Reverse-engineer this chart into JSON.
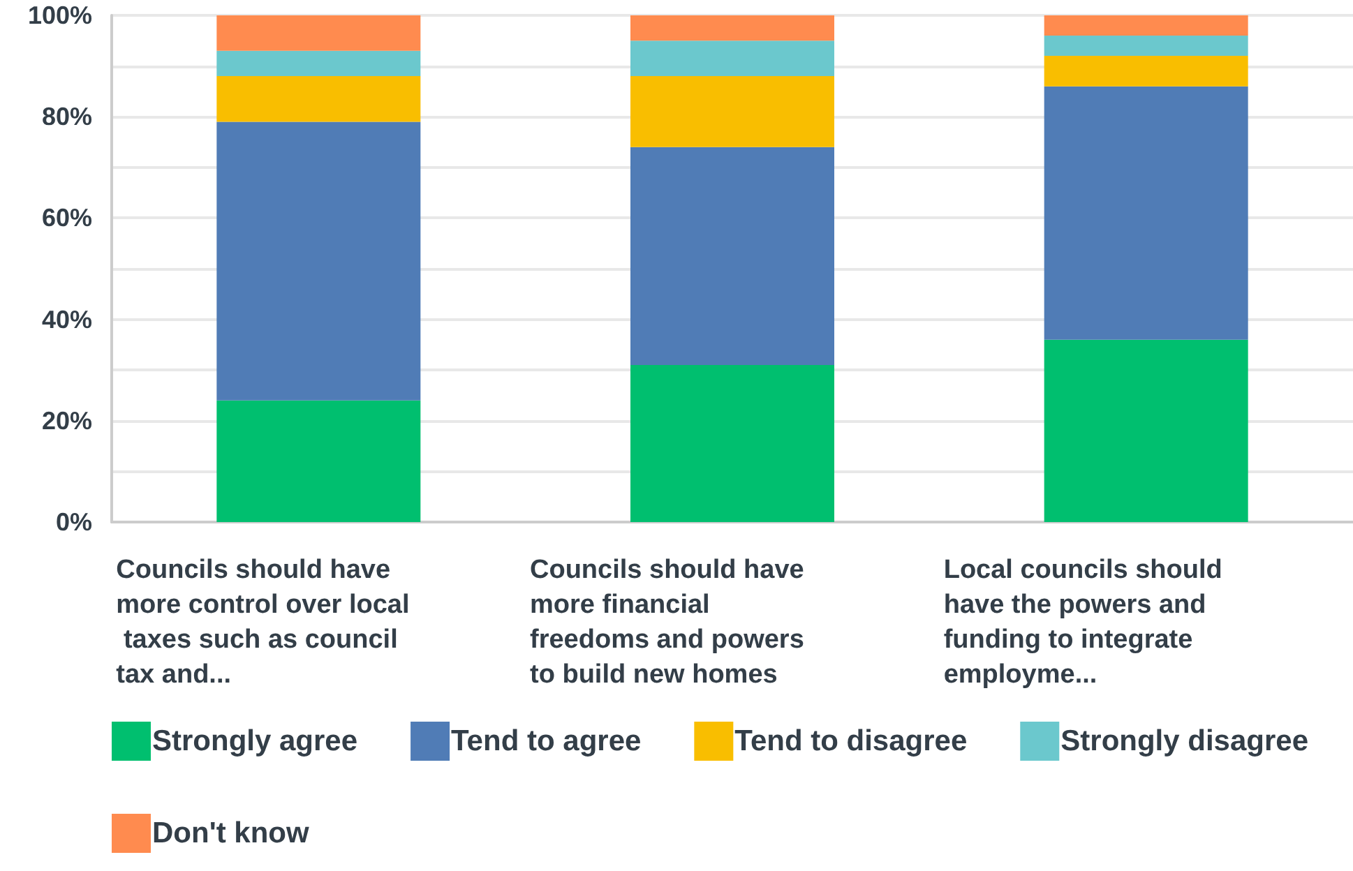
{
  "chart_data": {
    "type": "bar",
    "stacked": true,
    "categories": [
      "Councils should have more control over local taxes such as council tax and...",
      "Councils should have more financial freedoms and powers to build new homes",
      "Local councils should have the powers and funding to integrate employme..."
    ],
    "series": [
      {
        "name": "Strongly agree",
        "color": "#00bf6f",
        "values": [
          24,
          31,
          36
        ]
      },
      {
        "name": "Tend to agree",
        "color": "#507cb6",
        "values": [
          55,
          43,
          50
        ]
      },
      {
        "name": "Tend to disagree",
        "color": "#f9be00",
        "values": [
          9,
          14,
          6
        ]
      },
      {
        "name": "Strongly disagree",
        "color": "#6bc8cd",
        "values": [
          5,
          7,
          4
        ]
      },
      {
        "name": "Don't know",
        "color": "#ff8b4f",
        "values": [
          7,
          5,
          4
        ]
      }
    ],
    "ylim": [
      0,
      100
    ],
    "yticks": [
      {
        "value": 0,
        "label": "0%"
      },
      {
        "value": 10,
        "label": null
      },
      {
        "value": 20,
        "label": "20%"
      },
      {
        "value": 30,
        "label": null
      },
      {
        "value": 40,
        "label": "40%"
      },
      {
        "value": 50,
        "label": null
      },
      {
        "value": 60,
        "label": "60%"
      },
      {
        "value": 70,
        "label": null
      },
      {
        "value": 80,
        "label": "80%"
      },
      {
        "value": 90,
        "label": null
      },
      {
        "value": 100,
        "label": "100%"
      }
    ],
    "grid": true,
    "legend": "bottom"
  }
}
